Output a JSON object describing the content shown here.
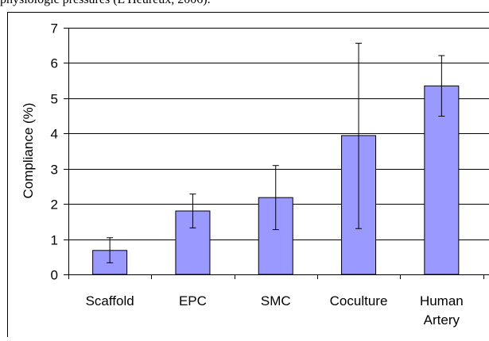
{
  "document": {
    "caption_fragment": "physiologic pressures (L'Heureux, 2006)."
  },
  "chart_data": {
    "type": "bar",
    "categories": [
      "Scaffold",
      "EPC",
      "SMC",
      "Coculture",
      "Human Artery"
    ],
    "category_label_lines": [
      [
        "Scaffold"
      ],
      [
        "EPC"
      ],
      [
        "SMC"
      ],
      [
        "Coculture"
      ],
      [
        "Human",
        "Artery"
      ]
    ],
    "values": [
      0.68,
      1.8,
      2.18,
      3.94,
      5.35
    ],
    "error_low": [
      0.33,
      1.32,
      1.27,
      1.3,
      4.49
    ],
    "error_high": [
      1.04,
      2.28,
      3.09,
      6.56,
      6.21
    ],
    "ylabel": "Compliance (%)",
    "xlabel": "",
    "ylim": [
      0,
      7
    ],
    "yticks": [
      0,
      1,
      2,
      3,
      4,
      5,
      6,
      7
    ],
    "grid": true,
    "bar_color": "#9999ff",
    "bar_edge_color": "#000000"
  }
}
